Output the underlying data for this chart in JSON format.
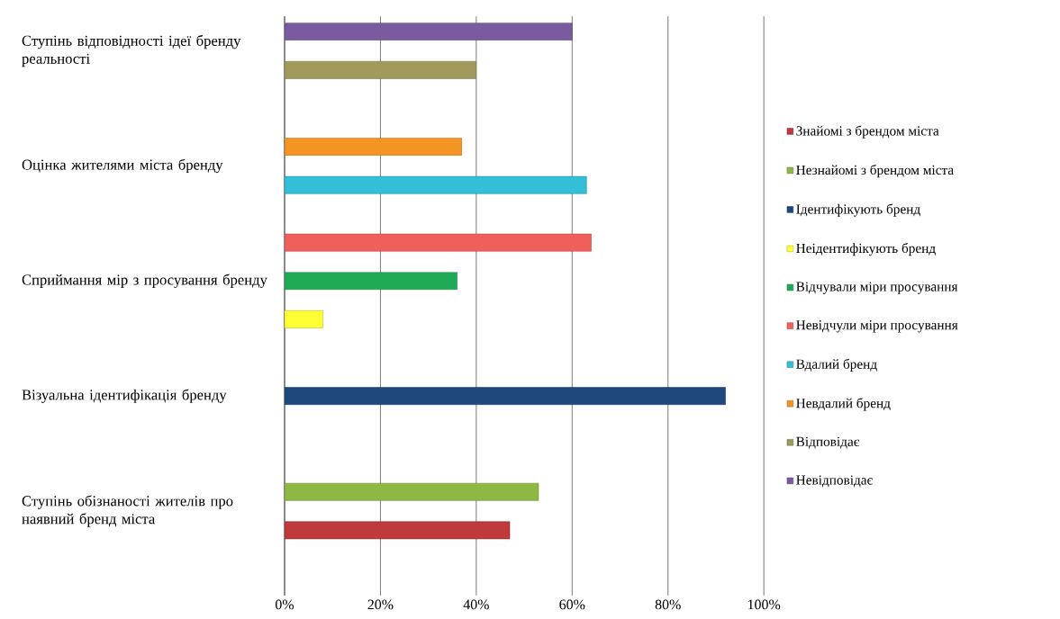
{
  "chart_data": {
    "type": "bar",
    "orientation": "horizontal",
    "categories": [
      "Ступінь відповідності ідеї бренду реальності",
      "Оцінка жителями міста бренду",
      "Сприймання мір з просування бренду",
      "Візуальна ідентифікація бренду",
      "Ступінь обізнаності жителів про наявний бренд міста"
    ],
    "series": [
      {
        "name": "Знайомі з брендом міста",
        "color": "#c0393b",
        "values": [
          null,
          null,
          null,
          null,
          47
        ]
      },
      {
        "name": "Незнайомі з брендом міста",
        "color": "#8db843",
        "values": [
          null,
          null,
          null,
          null,
          53
        ]
      },
      {
        "name": "Ідентифікують бренд",
        "color": "#1f497d",
        "values": [
          null,
          null,
          null,
          92,
          null
        ]
      },
      {
        "name": "Неідентифікують бренд",
        "color": "#ffff33",
        "values": [
          null,
          null,
          8,
          null,
          null
        ]
      },
      {
        "name": "Відчували міри просування",
        "color": "#1faa55",
        "values": [
          null,
          null,
          36,
          null,
          null
        ]
      },
      {
        "name": "Невідчули міри просування",
        "color": "#f0605a",
        "values": [
          null,
          null,
          64,
          null,
          null
        ]
      },
      {
        "name": "Вдалий бренд",
        "color": "#33bfd8",
        "values": [
          null,
          63,
          null,
          null,
          null
        ]
      },
      {
        "name": "Невдалий бренд",
        "color": "#f39423",
        "values": [
          null,
          37,
          null,
          null,
          null
        ]
      },
      {
        "name": "Відповідає",
        "color": "#a09a5c",
        "values": [
          40,
          null,
          null,
          null,
          null
        ]
      },
      {
        "name": "Невідповідає",
        "color": "#7a5ba0",
        "values": [
          60,
          null,
          null,
          null,
          null
        ]
      }
    ],
    "xlim": [
      0,
      100
    ],
    "xticks": [
      {
        "value": 0,
        "label": "0%"
      },
      {
        "value": 20,
        "label": "20%"
      },
      {
        "value": 40,
        "label": "40%"
      },
      {
        "value": 60,
        "label": "60%"
      },
      {
        "value": 80,
        "label": "80%"
      },
      {
        "value": 100,
        "label": "100%"
      }
    ],
    "grid": "x",
    "legend": "right"
  }
}
